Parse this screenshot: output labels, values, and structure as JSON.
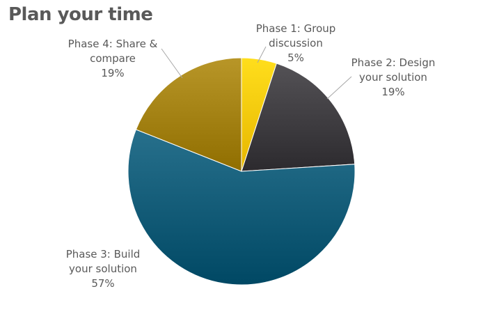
{
  "chart_data": {
    "type": "pie",
    "title": "Plan your time",
    "slices": [
      {
        "label_lines": [
          "Phase 1: Group",
          "discussion"
        ],
        "value": 5,
        "percent_label": "5%",
        "color": "#f2c200"
      },
      {
        "label_lines": [
          "Phase 2: Design",
          "your solution"
        ],
        "value": 19,
        "percent_label": "19%",
        "color": "#38363a"
      },
      {
        "label_lines": [
          "Phase 3:  Build",
          "your solution"
        ],
        "value": 57,
        "percent_label": "57%",
        "color": "#0b5470"
      },
      {
        "label_lines": [
          "Phase 4: Share &",
          "compare"
        ],
        "value": 19,
        "percent_label": "19%",
        "color": "#9c7a0c"
      }
    ],
    "start_angle": "top, clockwise",
    "legend": "none (data labels)"
  }
}
